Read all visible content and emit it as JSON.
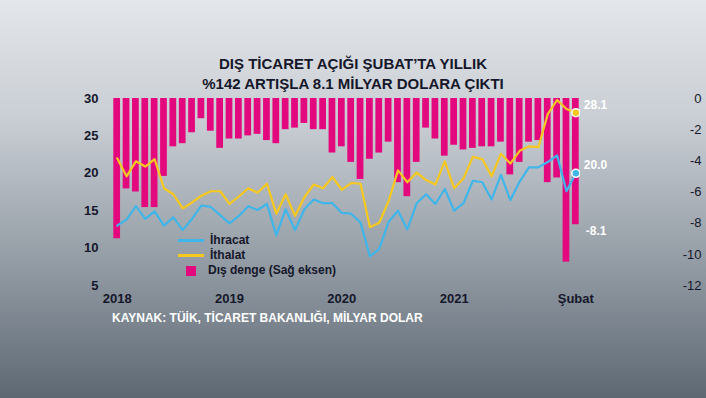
{
  "chart_data": {
    "type": "line",
    "title": "DIŞ TİCARET AÇIĞI ŞUBAT’TA YILLIK %142 ARTIŞLA 8.1 MİLYAR DOLARA ÇIKTI",
    "source": "KAYNAK: TÜİK, TİCARET BAKANLIĞI, MİLYAR DOLAR",
    "categories": [
      "2018",
      null,
      null,
      null,
      null,
      null,
      null,
      null,
      null,
      null,
      null,
      null,
      "2019",
      null,
      null,
      null,
      null,
      null,
      null,
      null,
      null,
      null,
      null,
      null,
      "2020",
      null,
      null,
      null,
      null,
      null,
      null,
      null,
      null,
      null,
      null,
      null,
      "2021",
      null,
      null,
      null,
      null,
      null,
      null,
      null,
      null,
      null,
      null,
      null,
      null,
      "Şubat"
    ],
    "series": [
      {
        "name": "İhracat",
        "type": "line",
        "color": "#3fb6ea",
        "values": [
          13.0,
          13.8,
          15.6,
          13.9,
          14.9,
          13.0,
          14.1,
          12.4,
          13.9,
          15.7,
          15.5,
          14.4,
          13.3,
          14.3,
          15.6,
          15.1,
          15.9,
          11.7,
          15.2,
          12.4,
          15.2,
          16.5,
          16.0,
          16.0,
          14.7,
          14.6,
          13.4,
          8.9,
          9.9,
          13.5,
          15.0,
          12.5,
          16.0,
          17.2,
          15.9,
          17.9,
          15.0,
          16.0,
          19.0,
          18.8,
          16.5,
          19.8,
          16.4,
          18.9,
          20.8,
          20.8,
          21.5,
          22.4,
          17.6,
          20.0
        ]
      },
      {
        "name": "İthalat",
        "type": "line",
        "color": "#f7c81e",
        "values": [
          22.0,
          19.6,
          21.6,
          20.9,
          21.9,
          18.0,
          17.2,
          15.3,
          16.1,
          17.0,
          17.6,
          17.6,
          15.9,
          16.9,
          18.0,
          17.4,
          18.6,
          14.6,
          17.2,
          14.3,
          16.8,
          18.5,
          18.0,
          19.5,
          17.8,
          18.7,
          18.6,
          12.8,
          13.4,
          16.3,
          20.4,
          18.8,
          20.1,
          19.1,
          18.5,
          21.6,
          18.0,
          19.3,
          22.2,
          21.9,
          19.6,
          22.6,
          21.3,
          23.0,
          23.6,
          23.5,
          27.9,
          29.8,
          28.6,
          28.1
        ]
      },
      {
        "name": "Dış denge (Sağ eksen)",
        "type": "bar",
        "axis": "y2",
        "color": "#e4087f",
        "values": [
          -9.0,
          -5.8,
          -6.0,
          -7.0,
          -7.0,
          -5.0,
          -3.1,
          -2.9,
          -2.2,
          -1.3,
          -2.1,
          -3.2,
          -2.6,
          -2.6,
          -2.4,
          -2.3,
          -2.7,
          -2.9,
          -2.0,
          -1.9,
          -1.6,
          -2.0,
          -2.0,
          -3.5,
          -3.1,
          -4.1,
          -5.2,
          -3.9,
          -3.5,
          -2.8,
          -5.4,
          -6.3,
          -4.1,
          -1.9,
          -2.6,
          -3.7,
          -3.0,
          -3.3,
          -3.2,
          -3.1,
          -3.1,
          -2.8,
          -4.9,
          -4.1,
          -2.8,
          -2.7,
          -5.4,
          -5.1,
          -10.5,
          -8.1
        ]
      }
    ],
    "annotations": [
      {
        "text": "28.1",
        "series": "İthalat"
      },
      {
        "text": "20.0",
        "series": "İhracat"
      },
      {
        "text": "-8.1",
        "series": "Dış denge (Sağ eksen)"
      }
    ],
    "ylim": [
      5,
      30
    ],
    "yticks": [
      5,
      10,
      15,
      20,
      25,
      30
    ],
    "y2lim": [
      -12,
      0
    ],
    "y2ticks": [
      0,
      -2,
      -4,
      -6,
      -8,
      -10,
      -12
    ],
    "grid": false,
    "legend": "lower-left"
  }
}
